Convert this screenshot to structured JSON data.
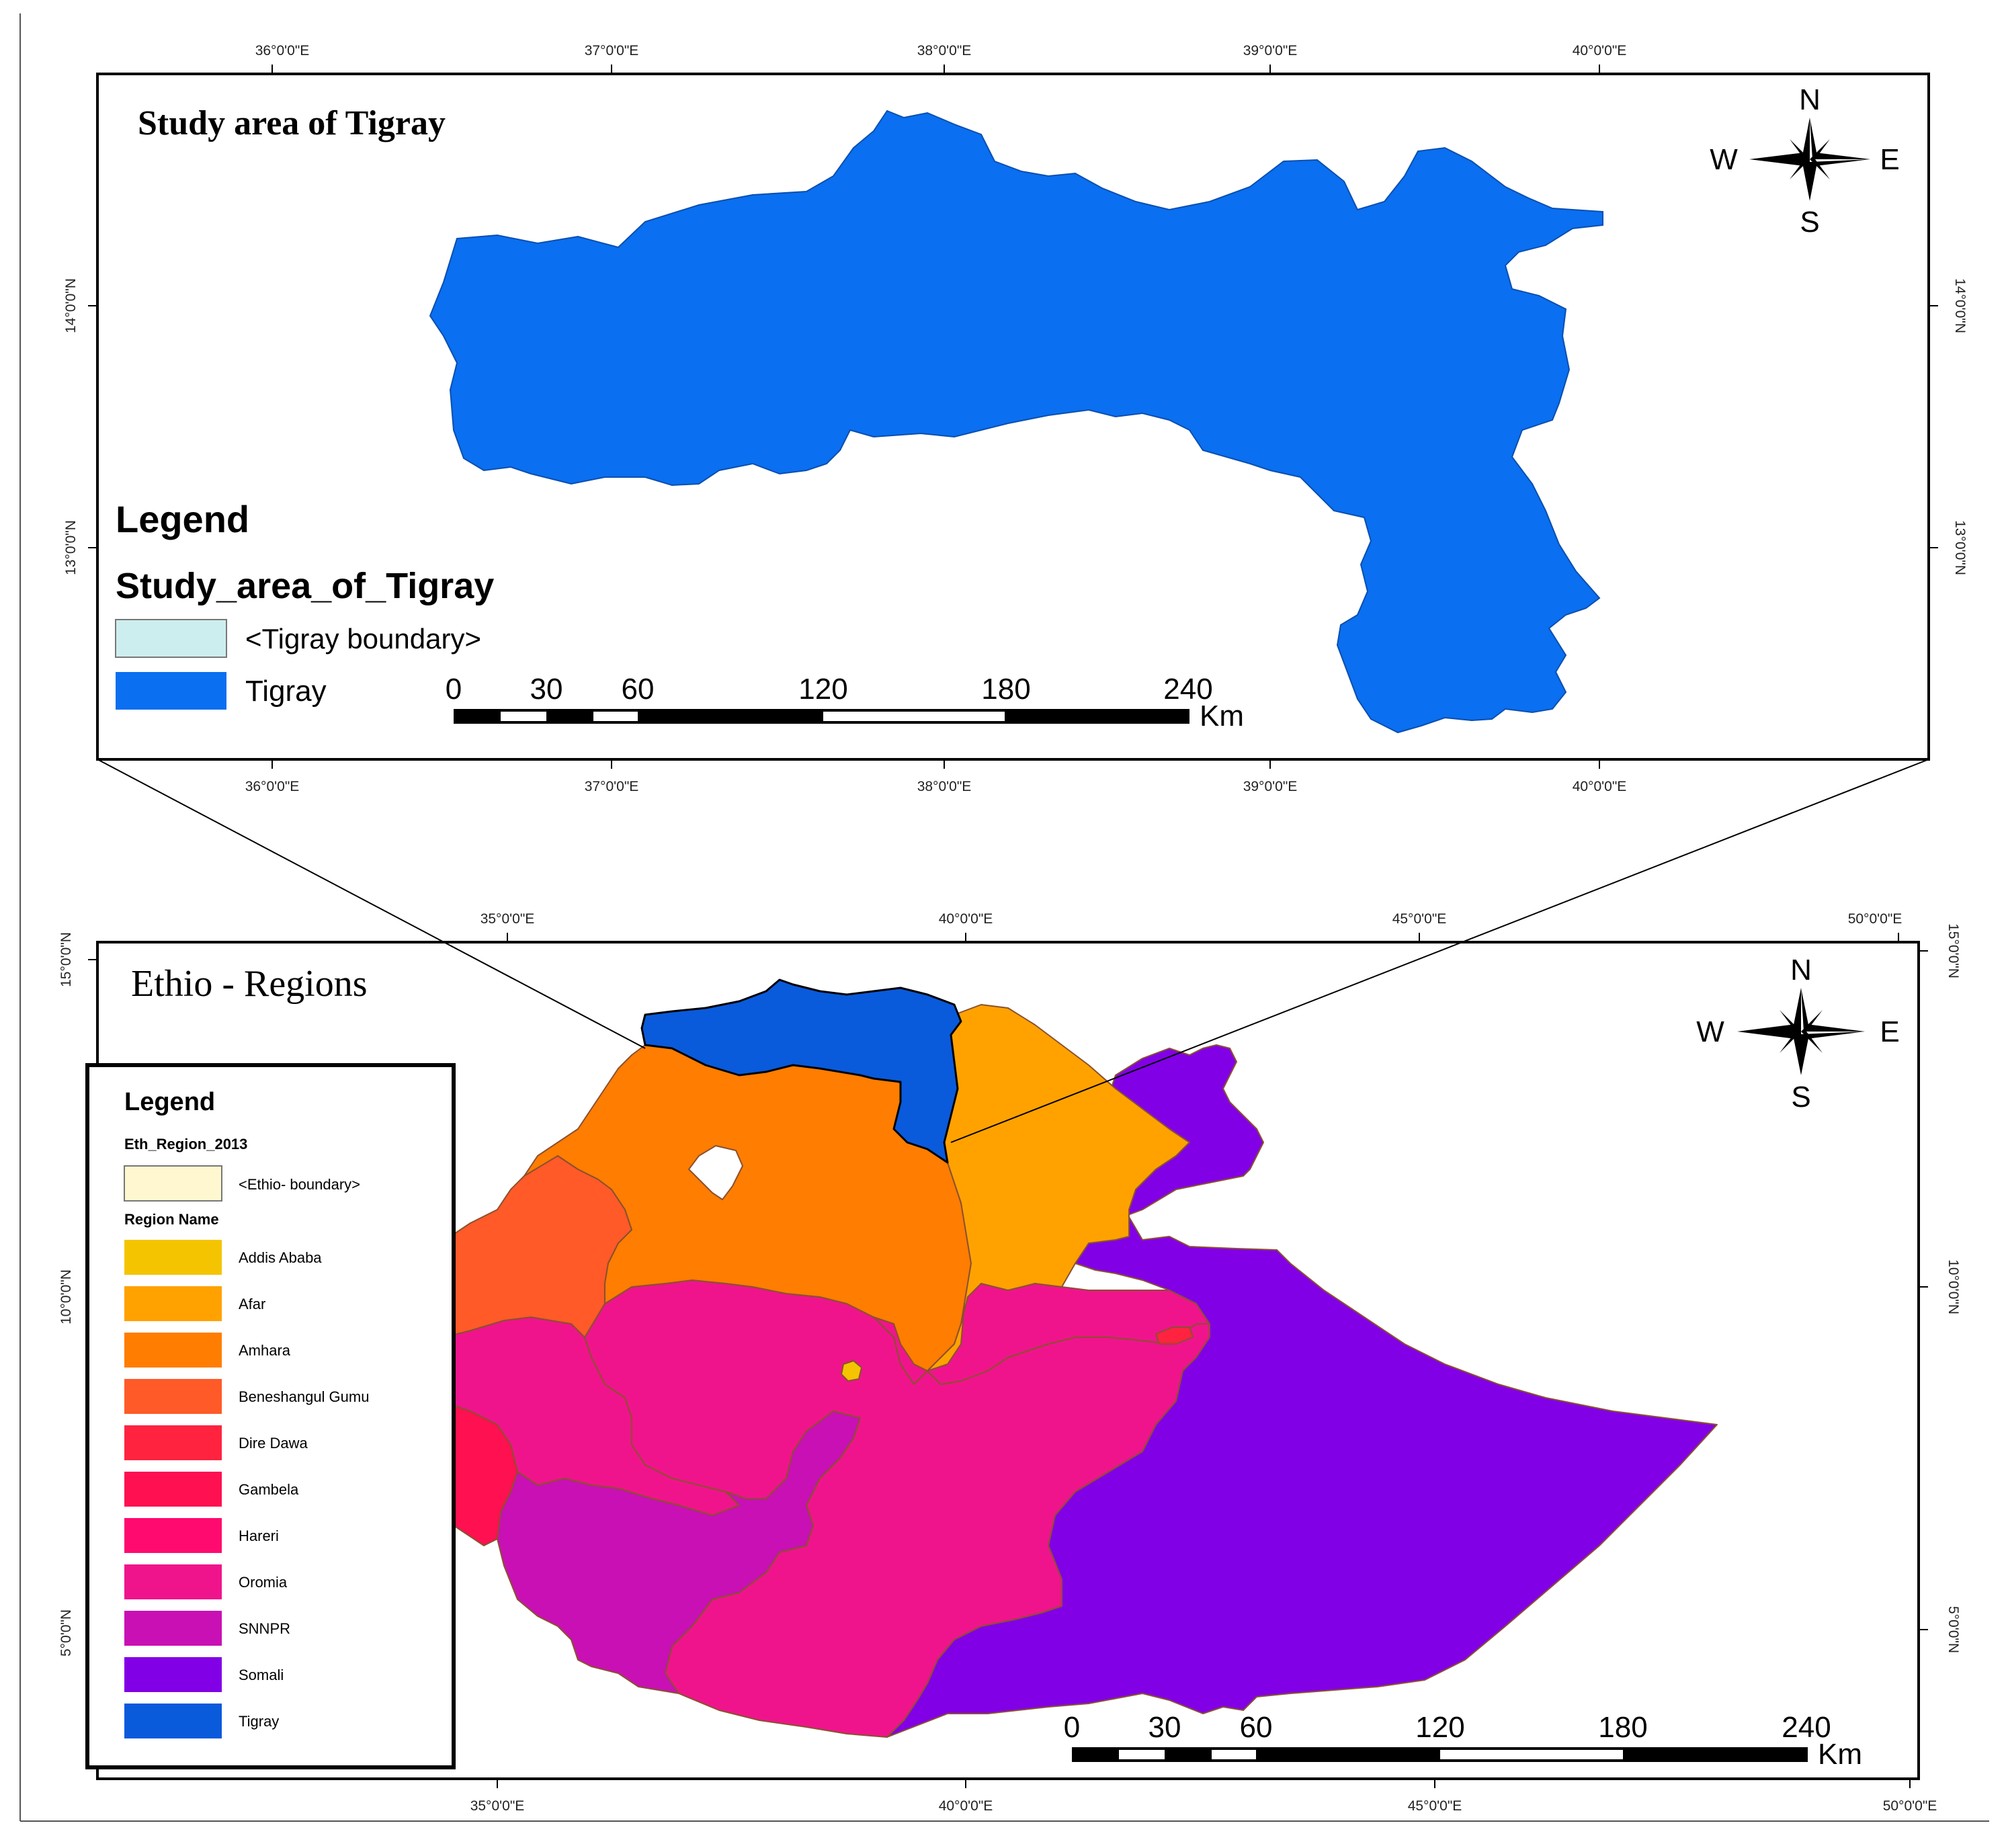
{
  "top_map": {
    "title": "Study area of Tigray",
    "ticks_top": [
      "36°0'0\"E",
      "37°0'0\"E",
      "38°0'0\"E",
      "39°0'0\"E",
      "40°0'0\"E"
    ],
    "ticks_bottom": [
      "36°0'0\"E",
      "37°0'0\"E",
      "38°0'0\"E",
      "39°0'0\"E",
      "40°0'0\"E"
    ],
    "ticks_left": [
      "14°0'0\"N",
      "13°0'0\"N"
    ],
    "ticks_right": [
      "14°0'0\"N",
      "13°0'0\"N"
    ],
    "legend": {
      "title": "Legend",
      "subtitle": "Study_area_of_Tigray",
      "items": [
        {
          "label": "<Tigray boundary>",
          "color": "#cdeeee"
        },
        {
          "label": "Tigray",
          "color": "#0a6ff0"
        }
      ]
    },
    "compass": {
      "n": "N",
      "s": "S",
      "e": "E",
      "w": "W"
    },
    "scale": {
      "labels": [
        "0",
        "30",
        "60",
        "120",
        "180",
        "240"
      ],
      "unit": "Km"
    }
  },
  "bottom_map": {
    "title": "Ethio - Regions",
    "ticks_top": [
      "35°0'0\"E",
      "40°0'0\"E",
      "45°0'0\"E",
      "50°0'0\"E"
    ],
    "ticks_bottom": [
      "35°0'0\"E",
      "40°0'0\"E",
      "45°0'0\"E",
      "50°0'0\"E"
    ],
    "ticks_left": [
      "15°0'0\"N",
      "10°0'0\"N",
      "5°0'0\"N"
    ],
    "ticks_right": [
      "15°0'0\"N",
      "10°0'0\"N",
      "5°0'0\"N"
    ],
    "legend": {
      "title": "Legend",
      "layer": "Eth_Region_2013",
      "boundary_label": "<Ethio- boundary>",
      "boundary_color": "#fff7d0",
      "field": "Region Name",
      "items": [
        {
          "label": "Addis Ababa",
          "color": "#f5c400"
        },
        {
          "label": "Afar",
          "color": "#ffa200"
        },
        {
          "label": "Amhara",
          "color": "#ff7d00"
        },
        {
          "label": "Beneshangul Gumu",
          "color": "#ff5a28"
        },
        {
          "label": "Dire Dawa",
          "color": "#ff2340"
        },
        {
          "label": "Gambela",
          "color": "#ff1050"
        },
        {
          "label": "Hareri",
          "color": "#ff0a6e"
        },
        {
          "label": "Oromia",
          "color": "#f0148c"
        },
        {
          "label": "SNNPR",
          "color": "#c810b4"
        },
        {
          "label": "Somali",
          "color": "#8200e6"
        },
        {
          "label": "Tigray",
          "color": "#0a5adc"
        }
      ]
    },
    "compass": {
      "n": "N",
      "s": "S",
      "e": "E",
      "w": "W"
    },
    "scale": {
      "labels": [
        "0",
        "30",
        "60",
        "120",
        "180",
        "240"
      ],
      "unit": "Km"
    }
  }
}
